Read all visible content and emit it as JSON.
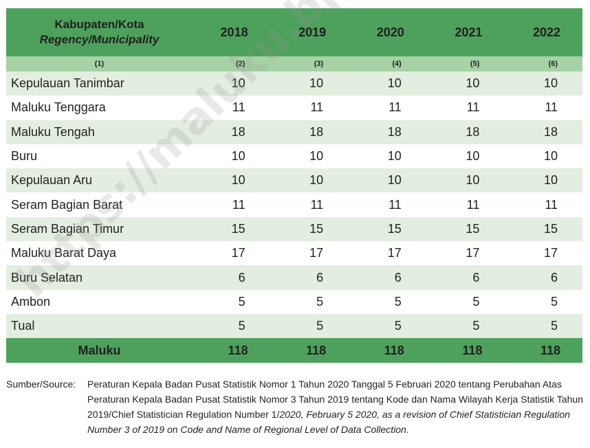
{
  "table": {
    "header": {
      "label_id": "Kabupaten/Kota",
      "label_en": "Regency/Municipality",
      "years": [
        "2018",
        "2019",
        "2020",
        "2021",
        "2022"
      ],
      "col_numbers": [
        "(1)",
        "(2)",
        "(3)",
        "(4)",
        "(5)",
        "(6)"
      ]
    },
    "rows": [
      {
        "name": "Kepulauan Tanimbar",
        "values": [
          "10",
          "10",
          "10",
          "10",
          "10"
        ]
      },
      {
        "name": "Maluku Tenggara",
        "values": [
          "11",
          "11",
          "11",
          "11",
          "11"
        ]
      },
      {
        "name": "Maluku Tengah",
        "values": [
          "18",
          "18",
          "18",
          "18",
          "18"
        ]
      },
      {
        "name": "Buru",
        "values": [
          "10",
          "10",
          "10",
          "10",
          "10"
        ]
      },
      {
        "name": "Kepulauan Aru",
        "values": [
          "10",
          "10",
          "10",
          "10",
          "10"
        ]
      },
      {
        "name": "Seram Bagian Barat",
        "values": [
          "11",
          "11",
          "11",
          "11",
          "11"
        ]
      },
      {
        "name": "Seram Bagian Timur",
        "values": [
          "15",
          "15",
          "15",
          "15",
          "15"
        ]
      },
      {
        "name": "Maluku Barat Daya",
        "values": [
          "17",
          "17",
          "17",
          "17",
          "17"
        ]
      },
      {
        "name": "Buru Selatan",
        "values": [
          "6",
          "6",
          "6",
          "6",
          "6"
        ]
      },
      {
        "name": "Ambon",
        "values": [
          "5",
          "5",
          "5",
          "5",
          "5"
        ]
      },
      {
        "name": "Tual",
        "values": [
          "5",
          "5",
          "5",
          "5",
          "5"
        ]
      }
    ],
    "total": {
      "name": "Maluku",
      "values": [
        "118",
        "118",
        "118",
        "118",
        "118"
      ]
    }
  },
  "source": {
    "label": "Sumber/Source:",
    "line1": "Peraturan Kepala Badan Pusat Statistik Nomor 1 Tahun 2020 Tanggal 5 Februari 2020 tentang Perubahan Atas",
    "line2": "Peraturan Kepala Badan Pusat Statistik Nomor 3 Tahun 2019 tentang Kode dan Nama Wilayah Kerja Statistik Tahun",
    "line3_plain": "2019/Chief Statistician Regulation Number 1/",
    "line3_italic": "2020, February 5 2020, as a revision of Chief Statistician Regulation",
    "line4_italic": "Number 3 of 2019 on Code and Name of Regional Level of Data Collection."
  },
  "watermark": "https://maluku.bps.go.id"
}
